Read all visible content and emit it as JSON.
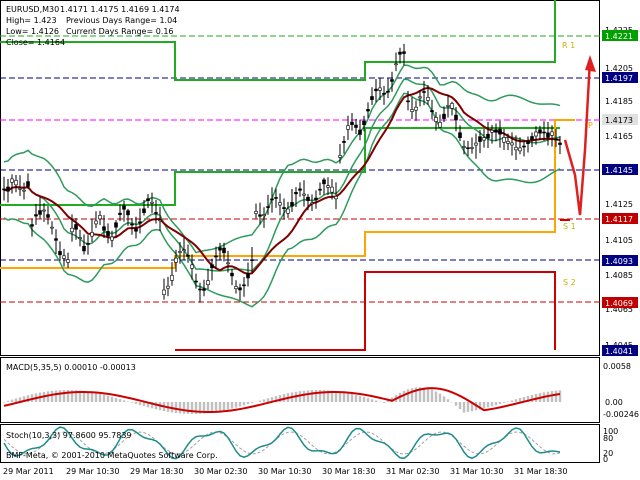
{
  "header": {
    "symbol": "EURUSD,M30",
    "ohlc": "1.4171 1.4175 1.4169 1.4174",
    "high": "High= 1.423",
    "prev_range": "Previous Days Range= 1.04",
    "low": "Low= 1.4126",
    "curr_range": "Current Days Range= 0.16",
    "close": "Close= 1.4164"
  },
  "pivot_labels": {
    "r1": "R 1",
    "p": "P",
    "s1": "S 1",
    "s2": "S 2"
  },
  "price_axis": {
    "ticks": [
      "1.4225",
      "1.4205",
      "1.4185",
      "1.4165",
      "1.4125",
      "1.4105",
      "1.4085",
      "1.4065",
      "1.4045"
    ],
    "tags": [
      {
        "value": "1.4221",
        "bg": "#00a000",
        "fg": "#ffffff"
      },
      {
        "value": "1.4197",
        "bg": "#000080",
        "fg": "#ffffff"
      },
      {
        "value": "1.4173",
        "bg": "#e0e0e0",
        "fg": "#000000"
      },
      {
        "value": "1.4145",
        "bg": "#000080",
        "fg": "#ffffff"
      },
      {
        "value": "1.4117",
        "bg": "#c00000",
        "fg": "#ffffff"
      },
      {
        "value": "1.4093",
        "bg": "#000080",
        "fg": "#ffffff"
      },
      {
        "value": "1.4069",
        "bg": "#c00000",
        "fg": "#ffffff"
      },
      {
        "value": "1.4041",
        "bg": "#000080",
        "fg": "#ffffff"
      }
    ]
  },
  "macd": {
    "label": "MACD(5,35,5) 0.00010 -0.00013",
    "ticks": [
      "0.0058",
      "0.00",
      "-0.00246"
    ]
  },
  "stoch": {
    "label": "Stoch(10,3,3) 97.8600 95.7839",
    "ticks": [
      "100",
      "80",
      "20",
      "0"
    ]
  },
  "watermark": "BMF-Meta, © 2001-2010 MetaQuotes Software Corp.",
  "time_axis": [
    "29 Mar 2011",
    "29 Mar 10:30",
    "29 Mar 18:30",
    "30 Mar 02:30",
    "30 Mar 10:30",
    "30 Mar 18:30",
    "31 Mar 02:30",
    "31 Mar 10:30",
    "31 Mar 18:30"
  ],
  "colors": {
    "bullish_arrow": "#e02020",
    "bollinger": "#2e9a5c",
    "ma": "#800000",
    "pivot_r1": "#22aa22",
    "pivot_p": "#ffa500",
    "pivot_s1": "#cc0000",
    "macd_hist": "#c0c0c0",
    "macd_signal": "#cc0000",
    "stoch_main": "#1e8c8c",
    "stoch_signal": "#a0a0a0"
  }
}
